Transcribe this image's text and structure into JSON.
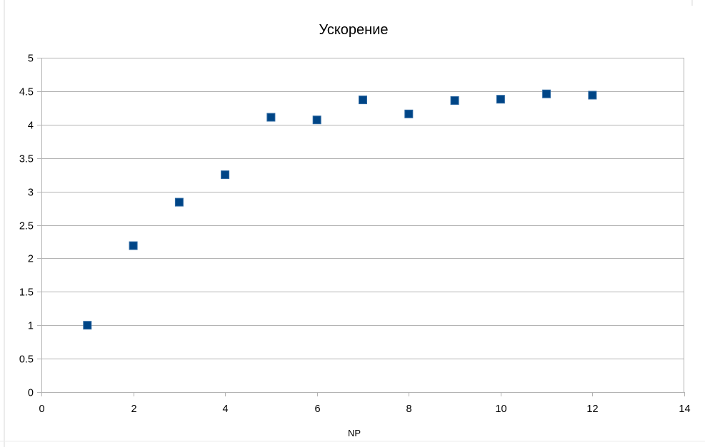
{
  "chart_data": {
    "type": "scatter",
    "title": "Ускорение",
    "xlabel": "NP",
    "ylabel": "",
    "xlim": [
      0,
      14
    ],
    "ylim": [
      0,
      5
    ],
    "x_ticks": [
      0,
      2,
      4,
      6,
      8,
      10,
      12,
      14
    ],
    "y_ticks": [
      0,
      0.5,
      1,
      1.5,
      2,
      2.5,
      3,
      3.5,
      4,
      4.5,
      5
    ],
    "grid": "horizontal",
    "legend": "none",
    "marker": "square",
    "colors": {
      "marker_fill": "#004586",
      "marker_edge": "#2f6aa3",
      "grid": "#b3b3b3",
      "frame": "#b3b3b3"
    },
    "x": [
      1,
      2,
      3,
      4,
      5,
      6,
      7,
      8,
      9,
      10,
      11,
      12
    ],
    "y": [
      1.0,
      2.19,
      2.84,
      3.25,
      4.11,
      4.07,
      4.37,
      4.16,
      4.36,
      4.38,
      4.46,
      4.44
    ]
  }
}
